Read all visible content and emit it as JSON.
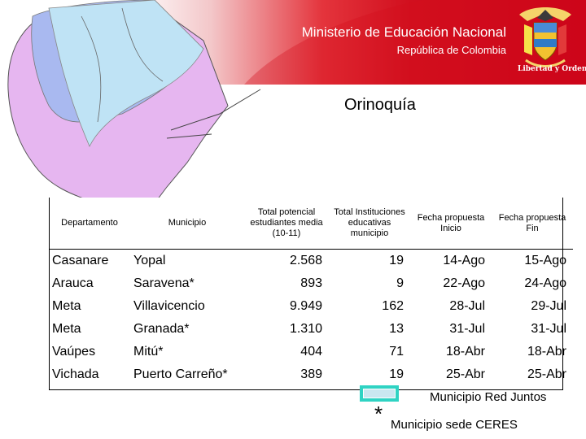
{
  "header": {
    "ministry": "Ministerio de Educación Nacional",
    "republic": "República de Colombia",
    "motto": "Libertad y Orden",
    "accent_color": "#d10f1e"
  },
  "region_title": "Orinoquía",
  "table": {
    "headers": [
      "Departamento",
      "Municipio",
      "Total potencial estudiantes media (10-11)",
      "Total Instituciones educativas municipio",
      "Fecha propuesta Inicio",
      "Fecha propuesta Fin"
    ],
    "rows": [
      [
        "Casanare",
        "Yopal",
        "2.568",
        "19",
        "14-Ago",
        "15-Ago"
      ],
      [
        "Arauca",
        "Saravena*",
        "893",
        "9",
        "22-Ago",
        "24-Ago"
      ],
      [
        "Meta",
        "Villavicencio",
        "9.949",
        "162",
        "28-Jul",
        "29-Jul"
      ],
      [
        "Meta",
        "Granada*",
        "1.310",
        "13",
        "31-Jul",
        "31-Jul"
      ],
      [
        "Vaúpes",
        "Mitú*",
        "404",
        "71",
        "18-Abr",
        "18-Abr"
      ],
      [
        "Vichada",
        "Puerto Carreño*",
        "389",
        "19",
        "25-Abr",
        "25-Abr"
      ]
    ]
  },
  "legend": {
    "box_label": "Municipio Red Juntos",
    "box_color": "#2fd3c3",
    "asterisk": "*",
    "asterisk_label": "Municipio sede CERES"
  }
}
